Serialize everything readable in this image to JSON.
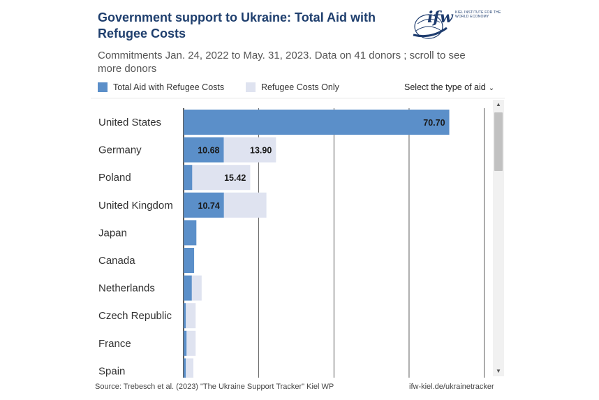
{
  "header": {
    "title": "Government support to Ukraine: Total Aid with Refugee Costs",
    "subtitle": "Commitments Jan. 24, 2022 to May. 31, 2023. Data on 41 donors ; scroll to see more donors"
  },
  "logo": {
    "text": "ifw",
    "sub": "KIEL INSTITUTE FOR THE WORLD ECONOMY"
  },
  "legend": {
    "total_label": "Total Aid with Refugee Costs",
    "refugee_label": "Refugee Costs Only"
  },
  "controls": {
    "select_type_label": "Select the type of aid"
  },
  "footer": {
    "source": "Source: Trebesch et al. (2023) \"The Ukraine Support Tracker\" Kiel WP",
    "link": "ifw-kiel.de/ukrainetracker"
  },
  "colors": {
    "total": "#5b8fc9",
    "refugee": "#dfe3f0",
    "gridline": "#333333",
    "title": "#1f3f6e"
  },
  "chart_data": {
    "type": "bar",
    "orientation": "horizontal",
    "categories": [
      "United States",
      "Germany",
      "Poland",
      "United Kingdom",
      "Japan",
      "Canada",
      "Netherlands",
      "Czech Republic",
      "France",
      "Spain"
    ],
    "series": [
      {
        "name": "Total Aid with Refugee Costs",
        "values": [
          70.7,
          10.68,
          2.3,
          10.74,
          3.4,
          2.8,
          2.2,
          0.6,
          0.8,
          0.6
        ],
        "labels": [
          "70.70",
          "10.68",
          "",
          "10.74",
          "",
          "",
          "",
          "",
          "",
          ""
        ]
      },
      {
        "name": "Refugee Costs Only",
        "values": [
          0,
          13.9,
          15.42,
          11.3,
          0,
          0,
          2.6,
          2.6,
          2.4,
          2.0
        ],
        "labels": [
          "",
          "13.90",
          "15.42",
          "",
          "",
          "",
          "",
          "",
          "",
          ""
        ]
      }
    ],
    "xlim": [
      0,
      81
    ],
    "grid": true,
    "legend_position": "top-left"
  }
}
